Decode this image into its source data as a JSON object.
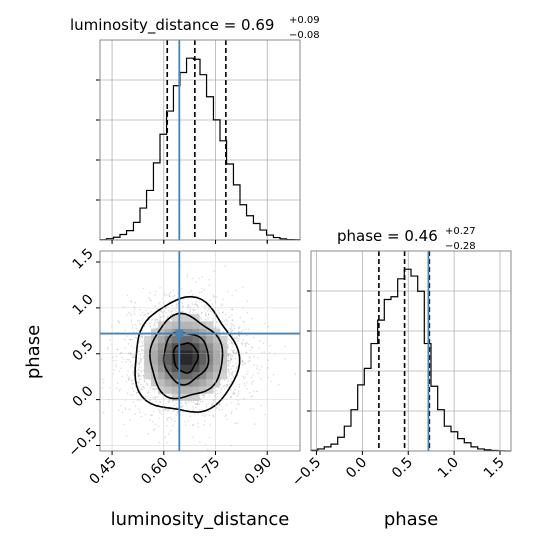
{
  "chart_data": {
    "type": "corner",
    "params": [
      "luminosity_distance",
      "phase"
    ],
    "colors": {
      "truth": "#4682b4",
      "hist": "#000000",
      "grid": "#b0b0b0",
      "quantile": "#000000"
    },
    "luminosity_distance": {
      "title_prefix": "luminosity_distance = 0.69",
      "title_plus": "+0.09",
      "title_minus": "−0.08",
      "median": 0.69,
      "truth": 0.645,
      "quantiles": [
        0.61,
        0.69,
        0.78
      ],
      "range": [
        0.415,
        0.995
      ],
      "ticks": [
        {
          "value": 0.45,
          "label": "0.45"
        },
        {
          "value": 0.6,
          "label": "0.60"
        },
        {
          "value": 0.75,
          "label": "0.75"
        },
        {
          "value": 0.9,
          "label": "0.90"
        }
      ],
      "xlabel": "luminosity_distance",
      "hist": {
        "edges": [
          0.415,
          0.434,
          0.454,
          0.473,
          0.492,
          0.512,
          0.531,
          0.55,
          0.57,
          0.589,
          0.608,
          0.628,
          0.647,
          0.666,
          0.686,
          0.705,
          0.724,
          0.744,
          0.763,
          0.782,
          0.802,
          0.821,
          0.84,
          0.86,
          0.879,
          0.898,
          0.918,
          0.937,
          0.956,
          0.976,
          0.995
        ],
        "counts": [
          0.3,
          1.2,
          2.5,
          5.0,
          8.5,
          16,
          29,
          45,
          70,
          96,
          117,
          140,
          152,
          165,
          164,
          150,
          130,
          109,
          90,
          69,
          50,
          32,
          22,
          15,
          9,
          4.5,
          2.2,
          1.1,
          0.4,
          0.2
        ]
      }
    },
    "phase": {
      "title_prefix": "phase = 0.46",
      "title_plus": "+0.27",
      "title_minus": "−0.28",
      "median": 0.46,
      "truth": 0.72,
      "quantiles": [
        0.18,
        0.46,
        0.73
      ],
      "range": [
        -0.56,
        1.62
      ],
      "ticks": [
        {
          "value": -0.5,
          "label": "−0.5"
        },
        {
          "value": 0.0,
          "label": "0.0"
        },
        {
          "value": 0.5,
          "label": "0.5"
        },
        {
          "value": 1.0,
          "label": "1.0"
        },
        {
          "value": 1.5,
          "label": "1.5"
        }
      ],
      "xlabel": "phase",
      "ylabel": "phase",
      "hist": {
        "edges": [
          -0.56,
          -0.487,
          -0.415,
          -0.342,
          -0.269,
          -0.197,
          -0.124,
          -0.051,
          0.021,
          0.094,
          0.167,
          0.239,
          0.312,
          0.385,
          0.457,
          0.53,
          0.603,
          0.675,
          0.748,
          0.821,
          0.893,
          0.966,
          1.039,
          1.111,
          1.184,
          1.257,
          1.329,
          1.402,
          1.475,
          1.547,
          1.62
        ],
        "counts": [
          0.5,
          1.5,
          3,
          5,
          10,
          18,
          30,
          48,
          60,
          78,
          95,
          110,
          112,
          125,
          132,
          127,
          116,
          78,
          47,
          30,
          18,
          14,
          9,
          6,
          3,
          1.5,
          0.8,
          0.4,
          0.1,
          0
        ]
      }
    },
    "joint": {
      "center": [
        0.663,
        0.46
      ],
      "contours": [
        {
          "rx": 0.035,
          "ry": 0.16,
          "rot": 0.0
        },
        {
          "rx": 0.065,
          "ry": 0.28,
          "rot": 0.0
        },
        {
          "rx": 0.105,
          "ry": 0.45,
          "rot": 0.0
        },
        {
          "rx": 0.15,
          "ry": 0.62,
          "rot": 0.0
        }
      ],
      "density_sigma": [
        0.09,
        0.3
      ]
    }
  }
}
